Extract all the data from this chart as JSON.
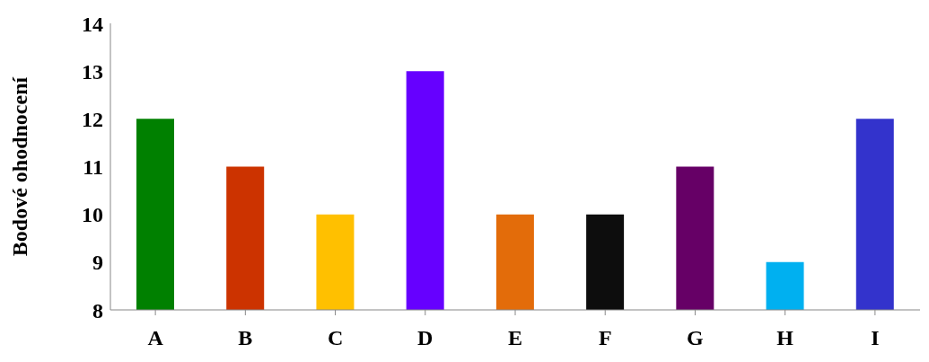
{
  "chart_data": {
    "type": "bar",
    "ylabel": "Bodové ohodnocení",
    "categories": [
      "A",
      "B",
      "C",
      "D",
      "E",
      "F",
      "G",
      "H",
      "I"
    ],
    "values": [
      12,
      11,
      10,
      13,
      10,
      10,
      11,
      9,
      12
    ],
    "colors": [
      "#008000",
      "#cc3300",
      "#ffc000",
      "#6600ff",
      "#e36c0a",
      "#0d0d0d",
      "#660066",
      "#00b0f0",
      "#3333cc"
    ],
    "ylim": [
      8,
      14
    ],
    "yticks": [
      8,
      9,
      10,
      11,
      12,
      13,
      14
    ],
    "grid": false,
    "legend": false
  }
}
